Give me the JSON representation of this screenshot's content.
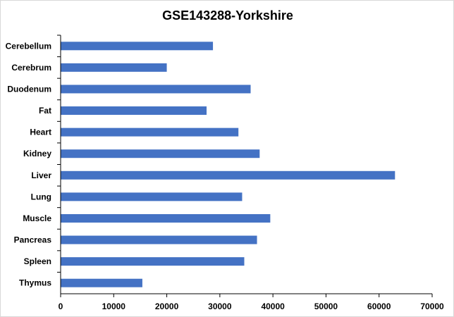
{
  "chart_data": {
    "type": "bar",
    "orientation": "horizontal",
    "title": "GSE143288-Yorkshire",
    "categories": [
      "Cerebellum",
      "Cerebrum",
      "Duodenum",
      "Fat",
      "Heart",
      "Kidney",
      "Liver",
      "Lung",
      "Muscle",
      "Pancreas",
      "Spleen",
      "Thymus"
    ],
    "values": [
      28700,
      20000,
      35800,
      27500,
      33500,
      37500,
      63000,
      34200,
      39500,
      37000,
      34600,
      15400
    ],
    "xlim": [
      0,
      70000
    ],
    "xticks": [
      "0",
      "10000",
      "20000",
      "30000",
      "40000",
      "50000",
      "60000",
      "70000"
    ],
    "xlabel": "",
    "ylabel": "",
    "grid": false,
    "legend": "none",
    "bar_color": "#4472c4",
    "axis_color": "#000000"
  }
}
